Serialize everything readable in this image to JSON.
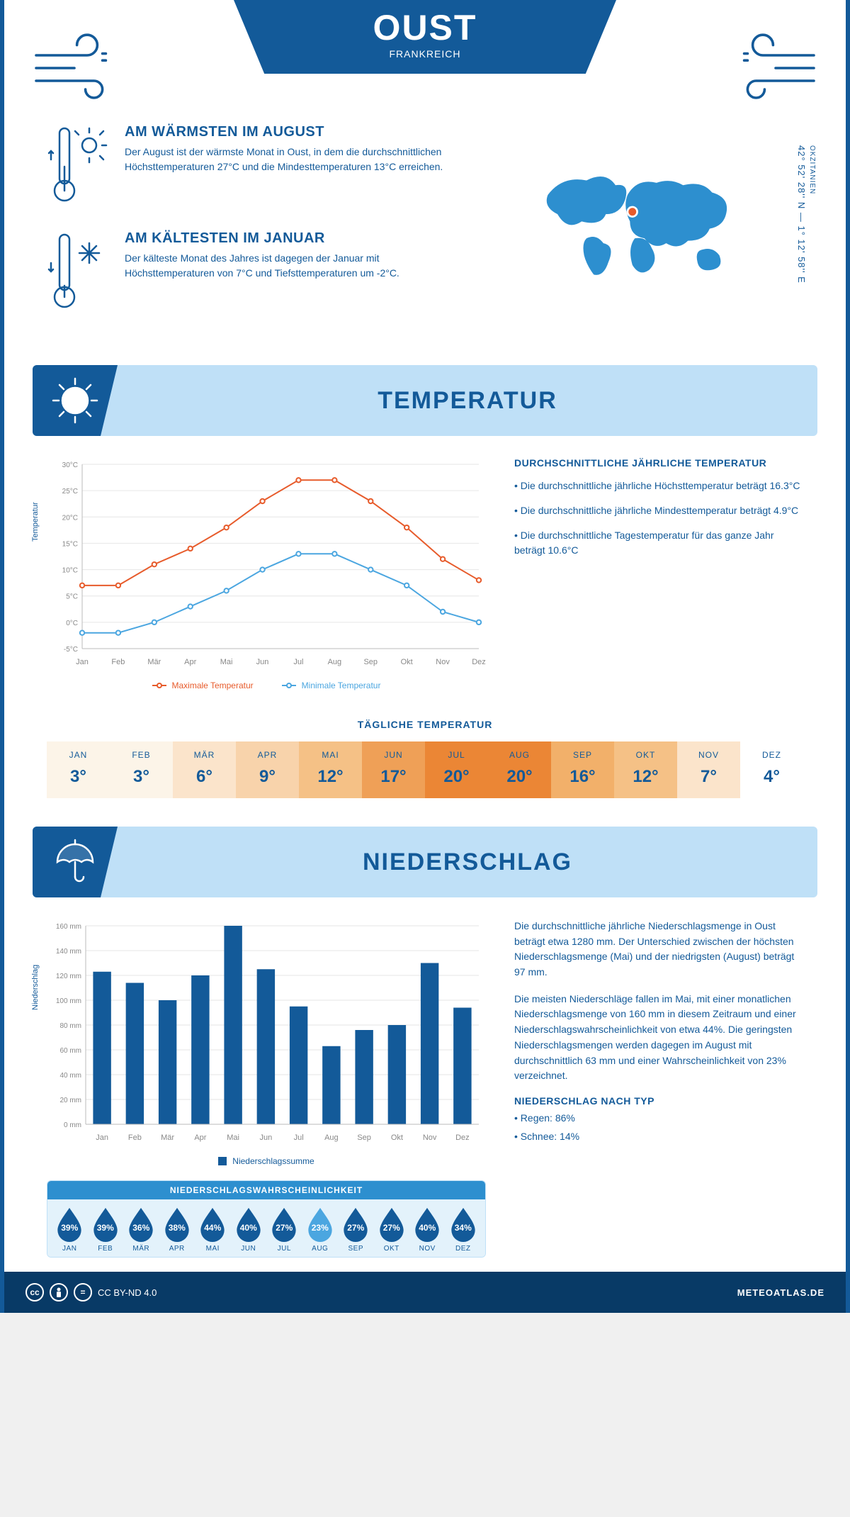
{
  "colors": {
    "brand": "#135a99",
    "brand_light": "#bfe0f7",
    "brand_light2": "#e3f2fb",
    "orange": "#e75b2b",
    "dark_navy": "#083a66",
    "min_line": "#4ba6e0"
  },
  "header": {
    "title": "OUST",
    "subtitle": "FRANKREICH"
  },
  "facts": {
    "warm": {
      "heading": "AM WÄRMSTEN IM AUGUST",
      "text": "Der August ist der wärmste Monat in Oust, in dem die durchschnittlichen Höchsttemperaturen 27°C und die Mindesttemperaturen 13°C erreichen."
    },
    "cold": {
      "heading": "AM KÄLTESTEN IM JANUAR",
      "text": "Der kälteste Monat des Jahres ist dagegen der Januar mit Höchsttemperaturen von 7°C und Tiefsttemperaturen um -2°C."
    }
  },
  "location": {
    "coords": "42° 52' 28'' N — 1° 12' 58'' E",
    "region": "OKZITANIEN"
  },
  "temp_section": {
    "heading": "TEMPERATUR",
    "chart": {
      "type": "line",
      "months": [
        "Jan",
        "Feb",
        "Mär",
        "Apr",
        "Mai",
        "Jun",
        "Jul",
        "Aug",
        "Sep",
        "Okt",
        "Nov",
        "Dez"
      ],
      "max": [
        7,
        7,
        11,
        14,
        18,
        23,
        27,
        27,
        23,
        18,
        12,
        8
      ],
      "min": [
        -2,
        -2,
        0,
        3,
        6,
        10,
        13,
        13,
        10,
        7,
        2,
        0
      ],
      "max_color": "#e75b2b",
      "min_color": "#4ba6e0",
      "ylim": [
        -5,
        30
      ],
      "ytick_step": 5,
      "yunit": "°C",
      "ylabel": "Temperatur",
      "grid_color": "#e6e6e6",
      "legend_max": "Maximale Temperatur",
      "legend_min": "Minimale Temperatur",
      "marker_radius": 3.2,
      "line_width": 2
    },
    "avg": {
      "heading": "DURCHSCHNITTLICHE JÄHRLICHE TEMPERATUR",
      "b1": "• Die durchschnittliche jährliche Höchsttemperatur beträgt 16.3°C",
      "b2": "• Die durchschnittliche jährliche Mindesttemperatur beträgt 4.9°C",
      "b3": "• Die durchschnittliche Tagestemperatur für das ganze Jahr beträgt 10.6°C"
    },
    "daily": {
      "heading": "TÄGLICHE TEMPERATUR",
      "months": [
        "JAN",
        "FEB",
        "MÄR",
        "APR",
        "MAI",
        "JUN",
        "JUL",
        "AUG",
        "SEP",
        "OKT",
        "NOV",
        "DEZ"
      ],
      "values": [
        "3°",
        "3°",
        "6°",
        "9°",
        "12°",
        "17°",
        "20°",
        "20°",
        "16°",
        "12°",
        "7°",
        "4°"
      ],
      "bg_colors": [
        "#fcf4e8",
        "#fcf4e8",
        "#fbe4cb",
        "#f8d3ab",
        "#f5c186",
        "#efa057",
        "#eb8635",
        "#eb8635",
        "#f2b06a",
        "#f5c186",
        "#fbe4cb",
        "#ffffff"
      ]
    }
  },
  "precip_section": {
    "heading": "NIEDERSCHLAG",
    "chart": {
      "type": "bar",
      "months": [
        "Jan",
        "Feb",
        "Mär",
        "Apr",
        "Mai",
        "Jun",
        "Jul",
        "Aug",
        "Sep",
        "Okt",
        "Nov",
        "Dez"
      ],
      "values": [
        123,
        114,
        100,
        120,
        160,
        125,
        95,
        63,
        76,
        80,
        130,
        94
      ],
      "bar_color": "#135a99",
      "ylim": [
        0,
        160
      ],
      "ytick_step": 20,
      "yunit": " mm",
      "ylabel": "Niederschlag",
      "grid_color": "#e6e6e6",
      "legend": "Niederschlagssumme",
      "bar_width": 0.55
    },
    "text1": "Die durchschnittliche jährliche Niederschlagsmenge in Oust beträgt etwa 1280 mm. Der Unterschied zwischen der höchsten Niederschlagsmenge (Mai) und der niedrigsten (August) beträgt 97 mm.",
    "text2": "Die meisten Niederschläge fallen im Mai, mit einer monatlichen Niederschlagsmenge von 160 mm in diesem Zeitraum und einer Niederschlagswahrscheinlichkeit von etwa 44%. Die geringsten Niederschlagsmengen werden dagegen im August mit durchschnittlich 63 mm und einer Wahrscheinlichkeit von 23% verzeichnet.",
    "bytype_heading": "NIEDERSCHLAG NACH TYP",
    "bytype1": "• Regen: 86%",
    "bytype2": "• Schnee: 14%",
    "prob": {
      "heading": "NIEDERSCHLAGSWAHRSCHEINLICHKEIT",
      "months": [
        "JAN",
        "FEB",
        "MÄR",
        "APR",
        "MAI",
        "JUN",
        "JUL",
        "AUG",
        "SEP",
        "OKT",
        "NOV",
        "DEZ"
      ],
      "values": [
        "39%",
        "39%",
        "36%",
        "38%",
        "44%",
        "40%",
        "27%",
        "23%",
        "27%",
        "27%",
        "40%",
        "34%"
      ],
      "colors": [
        "#135a99",
        "#135a99",
        "#135a99",
        "#135a99",
        "#135a99",
        "#135a99",
        "#135a99",
        "#4ba6e0",
        "#135a99",
        "#135a99",
        "#135a99",
        "#135a99"
      ]
    }
  },
  "footer": {
    "license": "CC BY-ND 4.0",
    "site": "METEOATLAS.DE"
  }
}
